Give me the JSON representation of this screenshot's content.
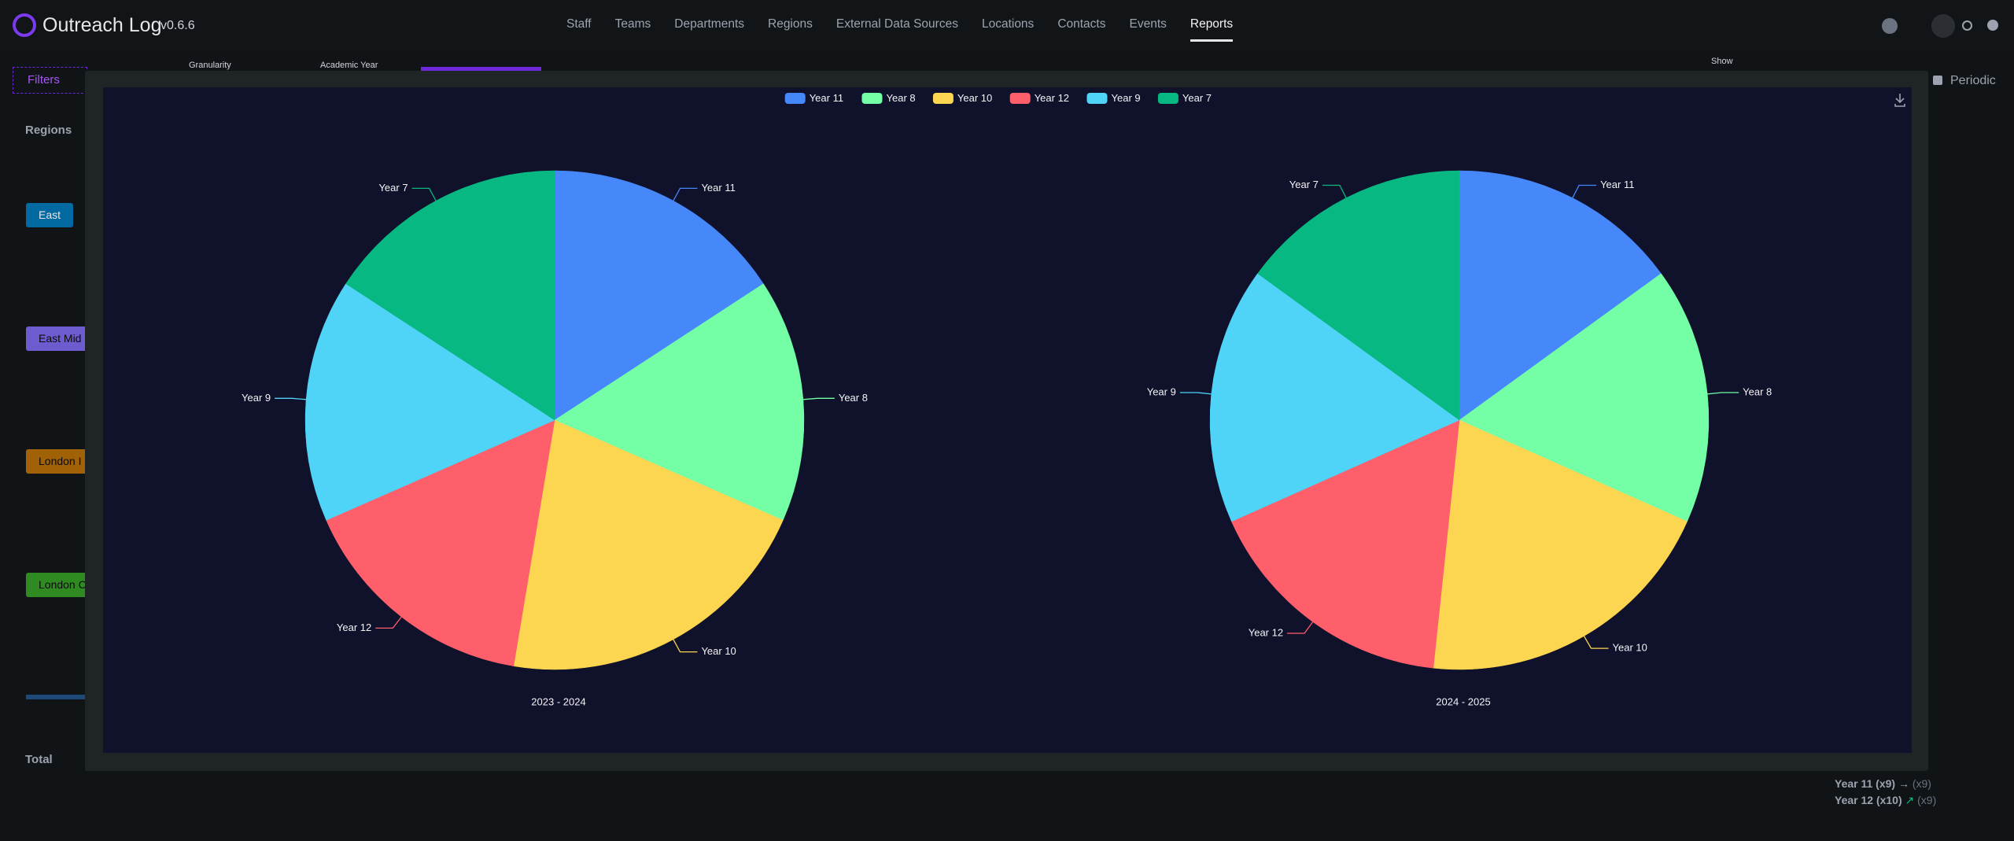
{
  "header": {
    "app_name": "Outreach Log",
    "version": "v0.6.6",
    "nav": [
      "Staff",
      "Teams",
      "Departments",
      "Regions",
      "External Data Sources",
      "Locations",
      "Contacts",
      "Events",
      "Reports"
    ]
  },
  "toolbar": {
    "filters": "Filters",
    "granularity": "Granularity",
    "academic_year": "Academic Year",
    "show": "Show",
    "periodic": "Periodic"
  },
  "table": {
    "regions_header": "Regions",
    "regions": [
      "East",
      "East Mid",
      "London I",
      "London C"
    ],
    "total": "Total",
    "notes": [
      {
        "label": "Year 11 (x9)",
        "previous": "(x9)"
      },
      {
        "label": "Year 12 (x10)",
        "previous": "(x9)"
      }
    ]
  },
  "chart_data": [
    {
      "type": "pie",
      "title": "2023 - 2024",
      "legend": "top",
      "categories": [
        "Year 11",
        "Year 8",
        "Year 10",
        "Year 12",
        "Year 9",
        "Year 7"
      ],
      "values": [
        3,
        3,
        4,
        3,
        3,
        3
      ],
      "colors": [
        "#4688fa",
        "#74ffa7",
        "#fdd651",
        "#ff5e6b",
        "#4fd4f7",
        "#08b883"
      ]
    },
    {
      "type": "pie",
      "title": "2024 - 2025",
      "legend": "top",
      "categories": [
        "Year 11",
        "Year 8",
        "Year 10",
        "Year 12",
        "Year 9",
        "Year 7"
      ],
      "values": [
        9,
        10,
        12,
        10,
        10,
        9
      ],
      "colors": [
        "#4688fa",
        "#74ffa7",
        "#fdd651",
        "#ff5e6b",
        "#4fd4f7",
        "#08b883"
      ]
    }
  ]
}
